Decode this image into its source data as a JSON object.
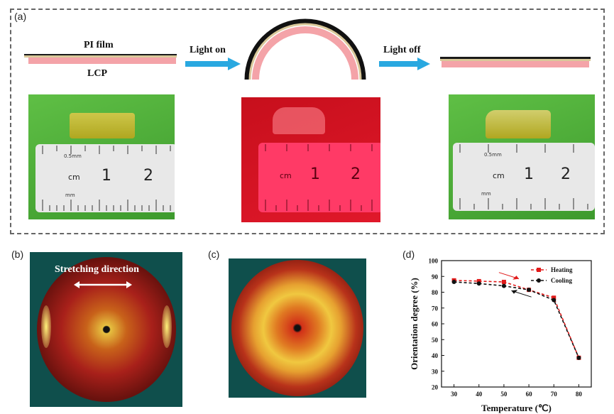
{
  "panel_a": {
    "label": "(a)",
    "pi_film": "PI film",
    "lcp": "LCP",
    "light_on": "Light on",
    "light_off": "Light off",
    "ruler_cm": "cm",
    "ruler_1": "1",
    "ruler_2": "2",
    "ruler_05mm": "0.5mm",
    "ruler_mm": "mm"
  },
  "panel_b": {
    "label": "(b)",
    "stretching_direction": "Stretching direction"
  },
  "panel_c": {
    "label": "(c)"
  },
  "panel_d": {
    "label": "(d)"
  },
  "colors": {
    "heating": "#e11a1a",
    "cooling": "#111111",
    "arrow_blue": "#29a8e0",
    "lcp_pink": "#f4a3a8",
    "green_bg": "#4caf3a",
    "red_bg": "#d41320"
  },
  "chart_data": {
    "type": "line",
    "title": "",
    "xlabel": "Temperature (℃)",
    "ylabel": "Orientation degree (%)",
    "xlim": [
      25,
      85
    ],
    "ylim": [
      20,
      100
    ],
    "x_ticks": [
      30,
      40,
      50,
      60,
      70,
      80
    ],
    "y_ticks": [
      20,
      30,
      40,
      50,
      60,
      70,
      80,
      90,
      100
    ],
    "series": [
      {
        "name": "Heating",
        "x": [
          30,
          40,
          50,
          60,
          70,
          80
        ],
        "values": [
          87.5,
          87,
          86.5,
          81.5,
          76.5,
          38.5
        ]
      },
      {
        "name": "Cooling",
        "x": [
          30,
          40,
          50,
          60,
          70,
          80
        ],
        "values": [
          86.5,
          85.5,
          84,
          81.5,
          75,
          38.5
        ]
      }
    ],
    "legend": "top-right"
  }
}
